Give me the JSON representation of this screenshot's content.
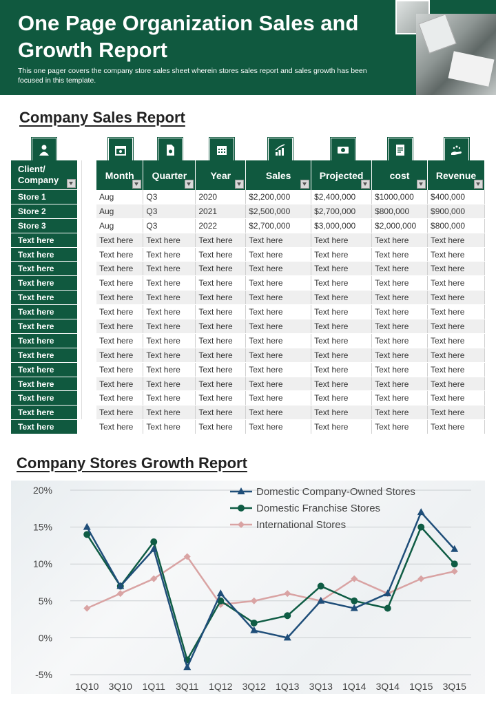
{
  "header": {
    "title": "One Page Organization Sales and Growth Report",
    "subtitle": "This one pager covers the company store sales sheet wherein stores sales report and sales growth has been focused in this template."
  },
  "sales_report": {
    "title": "Company Sales Report",
    "client_header": "Client/ Company",
    "clients": [
      "Store 1",
      "Store 2",
      "Store 3",
      "Text here",
      "Text here",
      "Text here",
      "Text here",
      "Text here",
      "Text here",
      "Text here",
      "Text here",
      "Text here",
      "Text here",
      "Text here",
      "Text here",
      "Text here",
      "Text here"
    ],
    "columns": [
      "Month",
      "Quarter",
      "Year",
      "Sales",
      "Projected",
      "cost",
      "Revenue"
    ],
    "rows": [
      [
        "Aug",
        "Q3",
        "2020",
        "$2,200,000",
        "$2,400,000",
        "$1000,000",
        "$400,000"
      ],
      [
        "Aug",
        "Q3",
        "2021",
        "$2,500,000",
        "$2,700,000",
        "$800,000",
        "$900,000"
      ],
      [
        "Aug",
        "Q3",
        "2022",
        "$2,700,000",
        "$3,000,000",
        "$2,000,000",
        "$800,000"
      ],
      [
        "Text here",
        "Text here",
        "Text here",
        "Text here",
        "Text here",
        "Text here",
        "Text here"
      ],
      [
        "Text here",
        "Text here",
        "Text here",
        "Text here",
        "Text here",
        "Text here",
        "Text here"
      ],
      [
        "Text here",
        "Text here",
        "Text here",
        "Text here",
        "Text here",
        "Text here",
        "Text here"
      ],
      [
        "Text here",
        "Text here",
        "Text here",
        "Text here",
        "Text here",
        "Text here",
        "Text here"
      ],
      [
        "Text here",
        "Text here",
        "Text here",
        "Text here",
        "Text here",
        "Text here",
        "Text here"
      ],
      [
        "Text here",
        "Text here",
        "Text here",
        "Text here",
        "Text here",
        "Text here",
        "Text here"
      ],
      [
        "Text here",
        "Text here",
        "Text here",
        "Text here",
        "Text here",
        "Text here",
        "Text here"
      ],
      [
        "Text here",
        "Text here",
        "Text here",
        "Text here",
        "Text here",
        "Text here",
        "Text here"
      ],
      [
        "Text here",
        "Text here",
        "Text here",
        "Text here",
        "Text here",
        "Text here",
        "Text here"
      ],
      [
        "Text here",
        "Text here",
        "Text here",
        "Text here",
        "Text here",
        "Text here",
        "Text here"
      ],
      [
        "Text here",
        "Text here",
        "Text here",
        "Text here",
        "Text here",
        "Text here",
        "Text here"
      ],
      [
        "Text here",
        "Text here",
        "Text here",
        "Text here",
        "Text here",
        "Text here",
        "Text here"
      ],
      [
        "Text here",
        "Text here",
        "Text here",
        "Text here",
        "Text here",
        "Text here",
        "Text here"
      ],
      [
        "Text here",
        "Text here",
        "Text here",
        "Text here",
        "Text here",
        "Text here",
        "Text here"
      ]
    ],
    "icons": [
      "person-icon",
      "calendar-icon",
      "document-icon",
      "grid-calendar-icon",
      "growth-chart-icon",
      "money-icon",
      "invoice-icon",
      "hand-coins-icon"
    ]
  },
  "growth_report": {
    "title": "Company Stores Growth Report"
  },
  "colors": {
    "brand": "#10593f",
    "series1": "#1f4e79",
    "series2": "#0f5c44",
    "series3": "#d9a3a3"
  },
  "chart_data": {
    "type": "line",
    "title": "Company Stores Growth Report",
    "categories": [
      "1Q10",
      "3Q10",
      "1Q11",
      "3Q11",
      "1Q12",
      "3Q12",
      "1Q13",
      "3Q13",
      "1Q14",
      "3Q14",
      "1Q15",
      "3Q15"
    ],
    "series": [
      {
        "name": "Domestic Company-Owned Stores",
        "marker": "triangle",
        "values": [
          15,
          7,
          12,
          -4,
          6,
          1,
          0,
          5,
          4,
          6,
          17,
          12
        ]
      },
      {
        "name": "Domestic Franchise Stores",
        "marker": "circle",
        "values": [
          14,
          7,
          13,
          -3,
          5,
          2,
          3,
          7,
          5,
          4,
          15,
          10
        ]
      },
      {
        "name": "International Stores",
        "marker": "diamond",
        "values": [
          4,
          6,
          8,
          11,
          4.5,
          5,
          6,
          5,
          8,
          6,
          8,
          9
        ]
      }
    ],
    "ylim": [
      -5,
      20
    ],
    "yticks": [
      "20%",
      "15%",
      "10%",
      "5%",
      "0%",
      "-5%"
    ],
    "ytick_values": [
      20,
      15,
      10,
      5,
      0,
      -5
    ],
    "legend": "top-right",
    "grid": true
  }
}
